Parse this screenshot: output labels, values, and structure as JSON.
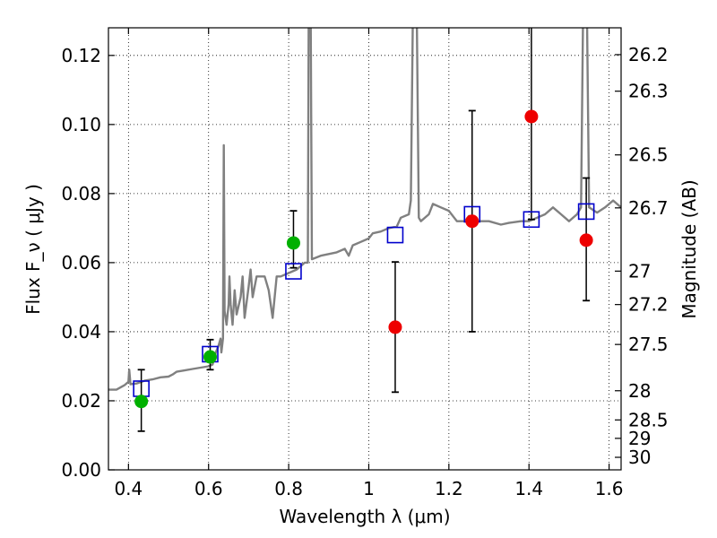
{
  "chart_data": {
    "type": "scatter",
    "xlabel": "Wavelength  λ (μm)",
    "ylabel": "Flux  F_ν  ( μJy )",
    "ylabel_right": "Magnitude (AB)",
    "xlim": [
      0.35,
      1.63
    ],
    "ylim": [
      0.0,
      0.128
    ],
    "grid": true,
    "x_ticks": [
      {
        "value": 0.4,
        "label": "0.4"
      },
      {
        "value": 0.6,
        "label": "0.6"
      },
      {
        "value": 0.8,
        "label": "0.8"
      },
      {
        "value": 1.0,
        "label": "1"
      },
      {
        "value": 1.2,
        "label": "1.2"
      },
      {
        "value": 1.4,
        "label": "1.4"
      },
      {
        "value": 1.6,
        "label": "1.6"
      }
    ],
    "y_ticks": [
      {
        "value": 0.0,
        "label": "0.00"
      },
      {
        "value": 0.02,
        "label": "0.02"
      },
      {
        "value": 0.04,
        "label": "0.04"
      },
      {
        "value": 0.06,
        "label": "0.06"
      },
      {
        "value": 0.08,
        "label": "0.08"
      },
      {
        "value": 0.1,
        "label": "0.10"
      },
      {
        "value": 0.12,
        "label": "0.12"
      }
    ],
    "right_ticks": [
      {
        "value": 26.2,
        "label": "26.2"
      },
      {
        "value": 26.3,
        "label": "26.3"
      },
      {
        "value": 26.5,
        "label": "26.5"
      },
      {
        "value": 26.7,
        "label": "26.7"
      },
      {
        "value": 27.0,
        "label": "27"
      },
      {
        "value": 27.2,
        "label": "27.2"
      },
      {
        "value": 27.5,
        "label": "27.5"
      },
      {
        "value": 28.0,
        "label": "28"
      },
      {
        "value": 28.5,
        "label": "28.5"
      },
      {
        "value": 29.0,
        "label": "29"
      },
      {
        "value": 30.0,
        "label": "30"
      }
    ],
    "model_spectrum": {
      "color": "#808080",
      "points": [
        [
          0.35,
          0.0232
        ],
        [
          0.37,
          0.0232
        ],
        [
          0.39,
          0.0245
        ],
        [
          0.4,
          0.0255
        ],
        [
          0.402,
          0.029
        ],
        [
          0.405,
          0.0248
        ],
        [
          0.42,
          0.025
        ],
        [
          0.44,
          0.0258
        ],
        [
          0.46,
          0.0262
        ],
        [
          0.48,
          0.0268
        ],
        [
          0.5,
          0.027
        ],
        [
          0.51,
          0.0276
        ],
        [
          0.52,
          0.0284
        ],
        [
          0.54,
          0.0288
        ],
        [
          0.56,
          0.0292
        ],
        [
          0.58,
          0.0296
        ],
        [
          0.6,
          0.03
        ],
        [
          0.61,
          0.0305
        ],
        [
          0.618,
          0.034
        ],
        [
          0.625,
          0.036
        ],
        [
          0.63,
          0.038
        ],
        [
          0.632,
          0.034
        ],
        [
          0.636,
          0.038
        ],
        [
          0.638,
          0.094
        ],
        [
          0.64,
          0.046
        ],
        [
          0.645,
          0.042
        ],
        [
          0.65,
          0.048
        ],
        [
          0.652,
          0.056
        ],
        [
          0.655,
          0.048
        ],
        [
          0.66,
          0.042
        ],
        [
          0.665,
          0.052
        ],
        [
          0.67,
          0.045
        ],
        [
          0.68,
          0.05
        ],
        [
          0.685,
          0.056
        ],
        [
          0.69,
          0.044
        ],
        [
          0.7,
          0.053
        ],
        [
          0.705,
          0.058
        ],
        [
          0.71,
          0.05
        ],
        [
          0.72,
          0.056
        ],
        [
          0.74,
          0.056
        ],
        [
          0.75,
          0.052
        ],
        [
          0.76,
          0.044
        ],
        [
          0.77,
          0.056
        ],
        [
          0.78,
          0.056
        ],
        [
          0.8,
          0.057
        ],
        [
          0.82,
          0.058
        ],
        [
          0.83,
          0.059
        ],
        [
          0.84,
          0.06
        ],
        [
          0.848,
          0.06
        ],
        [
          0.85,
          0.13
        ],
        [
          0.855,
          0.13
        ],
        [
          0.858,
          0.061
        ],
        [
          0.88,
          0.062
        ],
        [
          0.9,
          0.0625
        ],
        [
          0.92,
          0.063
        ],
        [
          0.94,
          0.064
        ],
        [
          0.95,
          0.062
        ],
        [
          0.96,
          0.065
        ],
        [
          0.98,
          0.066
        ],
        [
          1.0,
          0.067
        ],
        [
          1.01,
          0.0685
        ],
        [
          1.03,
          0.069
        ],
        [
          1.05,
          0.07
        ],
        [
          1.07,
          0.0705
        ],
        [
          1.08,
          0.073
        ],
        [
          1.1,
          0.074
        ],
        [
          1.105,
          0.078
        ],
        [
          1.11,
          0.13
        ],
        [
          1.12,
          0.13
        ],
        [
          1.125,
          0.073
        ],
        [
          1.13,
          0.072
        ],
        [
          1.15,
          0.074
        ],
        [
          1.16,
          0.077
        ],
        [
          1.18,
          0.076
        ],
        [
          1.2,
          0.075
        ],
        [
          1.22,
          0.072
        ],
        [
          1.24,
          0.072
        ],
        [
          1.25,
          0.0735
        ],
        [
          1.27,
          0.072
        ],
        [
          1.3,
          0.072
        ],
        [
          1.33,
          0.071
        ],
        [
          1.35,
          0.0715
        ],
        [
          1.38,
          0.072
        ],
        [
          1.4,
          0.072
        ],
        [
          1.42,
          0.073
        ],
        [
          1.44,
          0.074
        ],
        [
          1.46,
          0.076
        ],
        [
          1.48,
          0.074
        ],
        [
          1.5,
          0.072
        ],
        [
          1.52,
          0.074
        ],
        [
          1.53,
          0.076
        ],
        [
          1.535,
          0.13
        ],
        [
          1.545,
          0.13
        ],
        [
          1.55,
          0.076
        ],
        [
          1.57,
          0.0745
        ],
        [
          1.59,
          0.076
        ],
        [
          1.61,
          0.078
        ],
        [
          1.63,
          0.076
        ]
      ]
    },
    "model_photometry": {
      "color": "#0000cc",
      "points": [
        [
          0.432,
          0.0235
        ],
        [
          0.604,
          0.0335
        ],
        [
          0.812,
          0.0575
        ],
        [
          1.066,
          0.068
        ],
        [
          1.258,
          0.074
        ],
        [
          1.406,
          0.0725
        ],
        [
          1.543,
          0.0748
        ]
      ]
    },
    "detections": {
      "color": "#00b000",
      "points": [
        {
          "x": 0.432,
          "y": 0.0198,
          "err": [
            0.0112,
            0.029
          ]
        },
        {
          "x": 0.604,
          "y": 0.0327,
          "err": [
            0.029,
            0.0377
          ]
        },
        {
          "x": 0.812,
          "y": 0.0657,
          "err": [
            0.0585,
            0.075
          ]
        }
      ]
    },
    "nondetections": {
      "color": "#ee0000",
      "points": [
        {
          "x": 1.066,
          "y": 0.0413,
          "err": [
            0.0225,
            0.0602
          ]
        },
        {
          "x": 1.258,
          "y": 0.072,
          "err": [
            0.04,
            0.104
          ]
        },
        {
          "x": 1.406,
          "y": 0.1023,
          "err": [
            0.0725,
            0.13
          ]
        },
        {
          "x": 1.543,
          "y": 0.0665,
          "err": [
            0.049,
            0.0845
          ]
        }
      ]
    }
  }
}
